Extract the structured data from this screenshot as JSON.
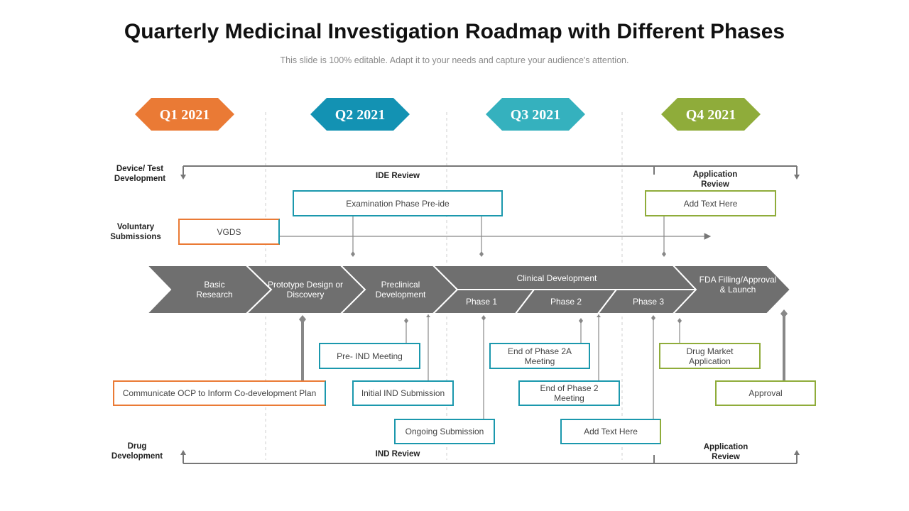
{
  "title": "Quarterly Medicinal Investigation Roadmap with Different Phases",
  "subtitle": "This slide is 100% editable. Adapt it to your needs and capture your audience's attention.",
  "colors": {
    "orange": "#ea7a35",
    "blue": "#1392b3",
    "teal": "#35b1be",
    "green": "#8fac3a",
    "gray": "#707070",
    "box_border": "#1b98ad"
  },
  "quarters": [
    {
      "label": "Q1 2021",
      "color": "#ea7a35"
    },
    {
      "label": "Q2 2021",
      "color": "#1392b3"
    },
    {
      "label": "Q3 2021",
      "color": "#35b1be"
    },
    {
      "label": "Q4 2021",
      "color": "#8fac3a"
    }
  ],
  "lanes": {
    "device": "Device/ Test Development",
    "voluntary": "Voluntary Submissions",
    "drug": "Drug Development"
  },
  "top_labels": {
    "ide_review": "IDE Review",
    "application_review": "Application Review"
  },
  "bottom_labels": {
    "ind_review": "IND Review",
    "application_review": "Application Review"
  },
  "phases": {
    "basic": "Basic Research",
    "prototype": "Prototype Design or Discovery",
    "preclinical": "Preclinical Development",
    "clinical": "Clinical Development",
    "phase1": "Phase 1",
    "phase2": "Phase 2",
    "phase3": "Phase 3",
    "fda": "FDA Filling/Approval & Launch"
  },
  "boxes": {
    "exam": "Examination Phase Pre-ide",
    "add_text_top": "Add Text Here",
    "vgds": "VGDS",
    "pre_ind": "Pre- IND Meeting",
    "phase2a": "End of Phase 2A Meeting",
    "drug_market": "Drug Market Application",
    "ocp": "Communicate OCP to Inform Co-development Plan",
    "initial_ind": "Initial IND Submission",
    "phase2_end": "End of Phase 2 Meeting",
    "approval": "Approval",
    "ongoing": "Ongoing Submission",
    "add_text_bottom": "Add Text Here"
  }
}
